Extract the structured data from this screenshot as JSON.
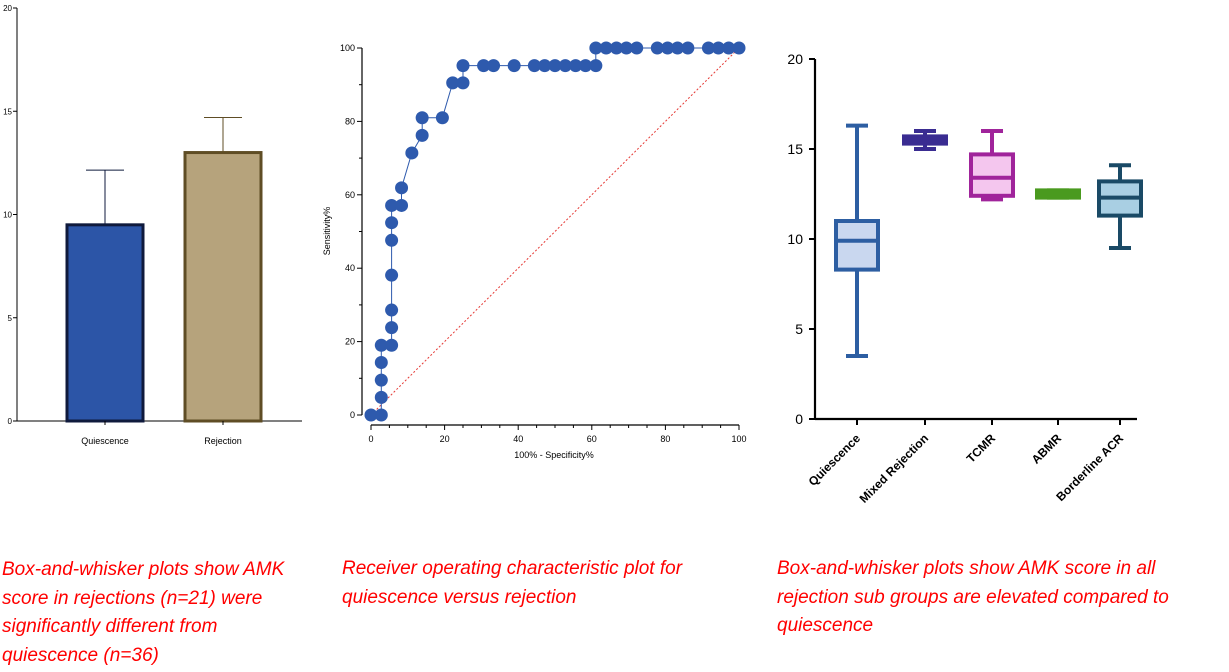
{
  "captions": {
    "left": [
      " Box-and-whisker plots show AMK",
      "score in rejections (n=21) were",
      "significantly different from",
      "quiescence (n=36)"
    ],
    "middle": [
      "Receiver operating characteristic plot for",
      "quiescence versus rejection"
    ],
    "right": [
      "Box-and-whisker plots show AMK score in all",
      "rejection sub groups are elevated compared to",
      "quiescence"
    ]
  },
  "chart_data": [
    {
      "id": "bar",
      "type": "bar",
      "categories": [
        "Quiescence",
        "Rejection"
      ],
      "values": [
        9.5,
        13.0
      ],
      "error_upper": [
        12.15,
        14.7
      ],
      "colors": [
        "#2c55a7",
        "#b6a37c"
      ],
      "edge_colors": [
        "#0f1a3c",
        "#5f4d25"
      ],
      "ylim": [
        0,
        20
      ],
      "yticks": [
        0,
        5,
        10,
        15,
        20
      ],
      "title": "",
      "xlabel": "",
      "ylabel": ""
    },
    {
      "id": "roc",
      "type": "scatter",
      "xlabel": "100% - Specificity%",
      "ylabel": "Sensitivity%",
      "xlim": [
        0,
        100
      ],
      "ylim": [
        0,
        100
      ],
      "xticks": [
        0,
        20,
        40,
        60,
        80,
        100
      ],
      "yticks": [
        0,
        20,
        40,
        60,
        80,
        100
      ],
      "point_color": "#2e5aad",
      "reference_line": {
        "from": [
          0,
          0
        ],
        "to": [
          100,
          100
        ],
        "color": "#e53935",
        "style": "dotted"
      },
      "points": [
        [
          0,
          0
        ],
        [
          2.8,
          0
        ],
        [
          2.8,
          4.8
        ],
        [
          2.8,
          9.5
        ],
        [
          2.8,
          14.3
        ],
        [
          2.8,
          19
        ],
        [
          5.6,
          19
        ],
        [
          5.6,
          23.8
        ],
        [
          5.6,
          28.6
        ],
        [
          5.6,
          38.1
        ],
        [
          5.6,
          47.6
        ],
        [
          5.6,
          52.4
        ],
        [
          5.6,
          57.1
        ],
        [
          8.3,
          57.1
        ],
        [
          8.3,
          61.9
        ],
        [
          11.1,
          71.4
        ],
        [
          13.9,
          76.2
        ],
        [
          13.9,
          81
        ],
        [
          19.4,
          81
        ],
        [
          22.2,
          90.5
        ],
        [
          25,
          90.5
        ],
        [
          25,
          95.2
        ],
        [
          30.6,
          95.2
        ],
        [
          33.3,
          95.2
        ],
        [
          38.9,
          95.2
        ],
        [
          44.4,
          95.2
        ],
        [
          47.2,
          95.2
        ],
        [
          50,
          95.2
        ],
        [
          52.8,
          95.2
        ],
        [
          55.6,
          95.2
        ],
        [
          58.3,
          95.2
        ],
        [
          61.1,
          95.2
        ],
        [
          61.1,
          100
        ],
        [
          63.9,
          100
        ],
        [
          66.7,
          100
        ],
        [
          69.4,
          100
        ],
        [
          72.2,
          100
        ],
        [
          77.8,
          100
        ],
        [
          80.6,
          100
        ],
        [
          83.3,
          100
        ],
        [
          86.1,
          100
        ],
        [
          91.7,
          100
        ],
        [
          94.4,
          100
        ],
        [
          97.2,
          100
        ],
        [
          100,
          100
        ]
      ]
    },
    {
      "id": "box",
      "type": "box",
      "categories": [
        "Quiescence",
        "Mixed Rejection",
        "TCMR",
        "ABMR",
        "Borderline ACR"
      ],
      "ylim": [
        0,
        20
      ],
      "yticks": [
        0,
        5,
        10,
        15,
        20
      ],
      "boxes": [
        {
          "min": 3.5,
          "q1": 8.3,
          "median": 9.9,
          "q3": 11.0,
          "max": 16.3,
          "color": "#2d5ea2",
          "fill": "#c9d7ef"
        },
        {
          "min": 15.0,
          "q1": 15.3,
          "median": 15.5,
          "q3": 15.7,
          "max": 16.0,
          "color": "#3a2c91",
          "fill": "#3a2c91"
        },
        {
          "min": 12.2,
          "q1": 12.4,
          "median": 13.4,
          "q3": 14.7,
          "max": 16.0,
          "color": "#a0249b",
          "fill": "#f4c6ee"
        },
        {
          "min": 12.3,
          "q1": 12.3,
          "median": 12.5,
          "q3": 12.7,
          "max": 12.7,
          "color": "#4a9a1f",
          "fill": "#4a9a1f"
        },
        {
          "min": 9.5,
          "q1": 11.3,
          "median": 12.3,
          "q3": 13.2,
          "max": 14.1,
          "color": "#1a4a66",
          "fill": "#a9cfe3"
        }
      ],
      "title": "",
      "xlabel": "",
      "ylabel": ""
    }
  ]
}
